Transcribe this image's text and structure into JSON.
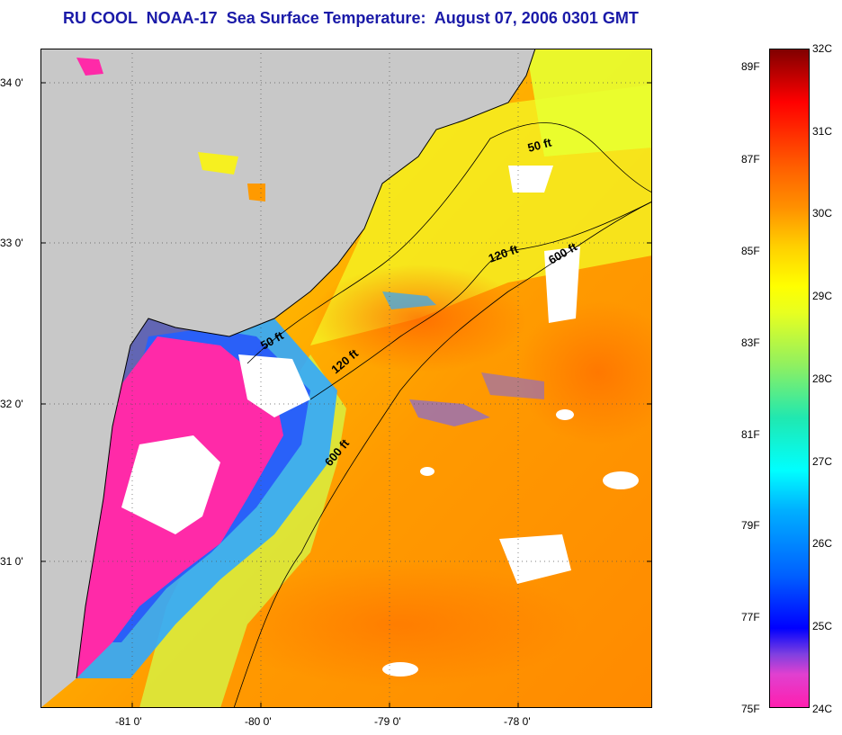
{
  "title": "RU COOL  NOAA-17  Sea Surface Temperature:  August 07, 2006 0301 GMT",
  "map": {
    "lat_labels": [
      "34 0'",
      "33 0'",
      "32 0'",
      "31 0'"
    ],
    "lon_labels": [
      "-81 0'",
      "-80 0'",
      "-79 0'",
      "-78 0'"
    ],
    "contours": [
      "50 ft",
      "120 ft",
      "600 ft",
      "50 ft",
      "120 ft",
      "600 ft"
    ],
    "colors": {
      "land": "#c8c8c8",
      "cloud": "#ffffff",
      "border": "#000000"
    }
  },
  "colorbar": {
    "celsius": [
      "32C",
      "31C",
      "30C",
      "29C",
      "28C",
      "27C",
      "26C",
      "25C",
      "24C"
    ],
    "fahrenheit": [
      "89F",
      "87F",
      "85F",
      "83F",
      "81F",
      "79F",
      "77F",
      "75F"
    ]
  }
}
